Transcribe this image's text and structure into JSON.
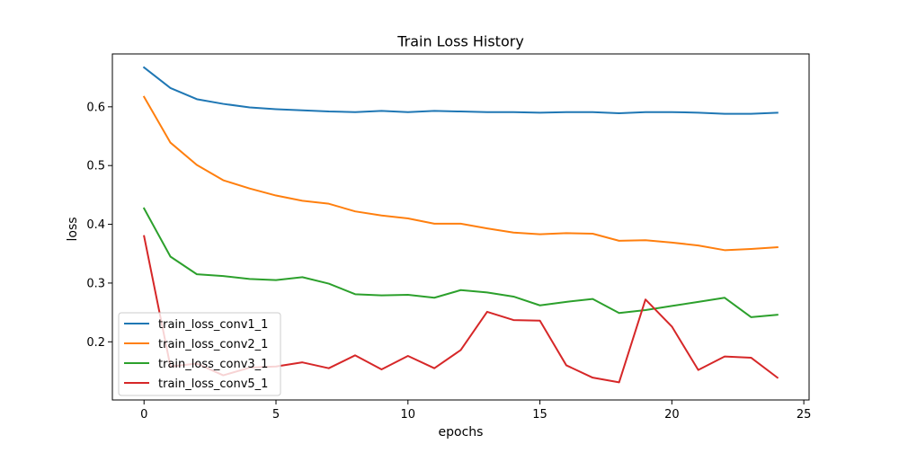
{
  "chart_data": {
    "type": "line",
    "title": "Train Loss History",
    "xlabel": "epochs",
    "ylabel": "loss",
    "xlim": [
      -1.2,
      25.2
    ],
    "ylim": [
      0.101,
      0.69
    ],
    "xticks": [
      0,
      5,
      10,
      15,
      20,
      25
    ],
    "yticks": [
      0.2,
      0.3,
      0.4,
      0.5,
      0.6
    ],
    "xtick_labels": [
      "0",
      "5",
      "10",
      "15",
      "20",
      "25"
    ],
    "ytick_labels": [
      "0.2",
      "0.3",
      "0.4",
      "0.5",
      "0.6"
    ],
    "grid": false,
    "legend_position": "lower-left",
    "x": [
      0,
      1,
      2,
      3,
      4,
      5,
      6,
      7,
      8,
      9,
      10,
      11,
      12,
      13,
      14,
      15,
      16,
      17,
      18,
      19,
      20,
      21,
      22,
      23,
      24
    ],
    "series": [
      {
        "name": "train_loss_conv1_1",
        "color": "#1f77b4",
        "values": [
          0.667,
          0.632,
          0.613,
          0.605,
          0.599,
          0.596,
          0.594,
          0.592,
          0.591,
          0.593,
          0.591,
          0.593,
          0.592,
          0.591,
          0.591,
          0.59,
          0.591,
          0.591,
          0.589,
          0.591,
          0.591,
          0.59,
          0.588,
          0.588,
          0.59
        ]
      },
      {
        "name": "train_loss_conv2_1",
        "color": "#ff7f0e",
        "values": [
          0.617,
          0.539,
          0.501,
          0.475,
          0.461,
          0.449,
          0.44,
          0.435,
          0.422,
          0.415,
          0.41,
          0.401,
          0.401,
          0.393,
          0.386,
          0.383,
          0.385,
          0.384,
          0.372,
          0.373,
          0.369,
          0.364,
          0.356,
          0.358,
          0.361
        ]
      },
      {
        "name": "train_loss_conv3_1",
        "color": "#2ca02c",
        "values": [
          0.427,
          0.345,
          0.315,
          0.312,
          0.307,
          0.305,
          0.31,
          0.299,
          0.281,
          0.279,
          0.28,
          0.275,
          0.288,
          0.284,
          0.277,
          0.262,
          0.268,
          0.273,
          0.249,
          0.254,
          0.261,
          0.268,
          0.275,
          0.242,
          0.246
        ]
      },
      {
        "name": "train_loss_conv5_1",
        "color": "#d62728",
        "values": [
          0.38,
          0.158,
          0.163,
          0.143,
          0.156,
          0.158,
          0.165,
          0.155,
          0.177,
          0.153,
          0.176,
          0.155,
          0.186,
          0.251,
          0.237,
          0.236,
          0.16,
          0.139,
          0.131,
          0.272,
          0.226,
          0.152,
          0.175,
          0.173,
          0.139
        ]
      }
    ]
  }
}
